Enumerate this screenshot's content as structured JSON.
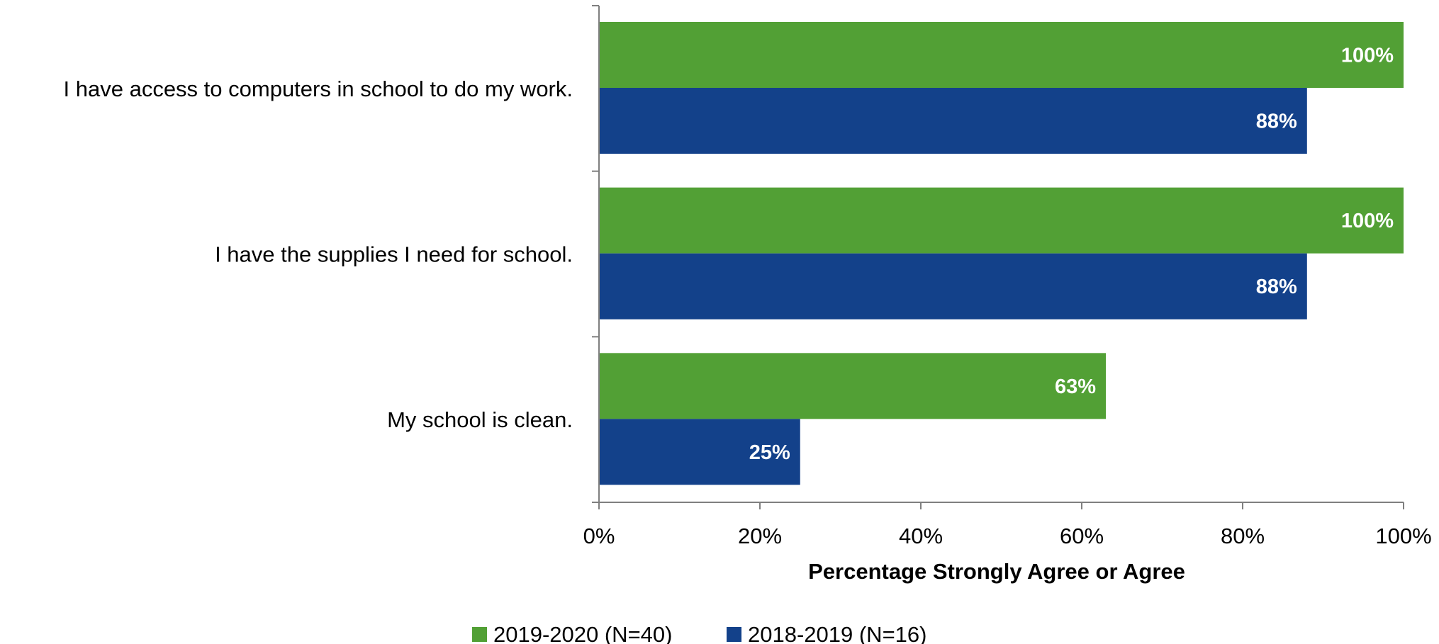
{
  "chart_data": {
    "type": "bar",
    "orientation": "horizontal",
    "categories": [
      "I have access to computers in school to do my work.",
      "I have the supplies I need for school.",
      "My school is clean."
    ],
    "series": [
      {
        "name": "2019-2020 (N=40)",
        "color": "#52a035",
        "values": [
          100,
          100,
          63
        ],
        "labels": [
          "100%",
          "100%",
          "63%"
        ]
      },
      {
        "name": "2018-2019 (N=16)",
        "color": "#13418a",
        "values": [
          88,
          88,
          25
        ],
        "labels": [
          "88%",
          "88%",
          "25%"
        ]
      }
    ],
    "xlabel": "Percentage Strongly Agree or Agree",
    "xlim": [
      0,
      100
    ],
    "xticks": [
      0,
      20,
      40,
      60,
      80,
      100
    ],
    "xtick_labels": [
      "0%",
      "20%",
      "40%",
      "60%",
      "80%",
      "100%"
    ],
    "grid": false,
    "legend_position": "bottom-center"
  }
}
